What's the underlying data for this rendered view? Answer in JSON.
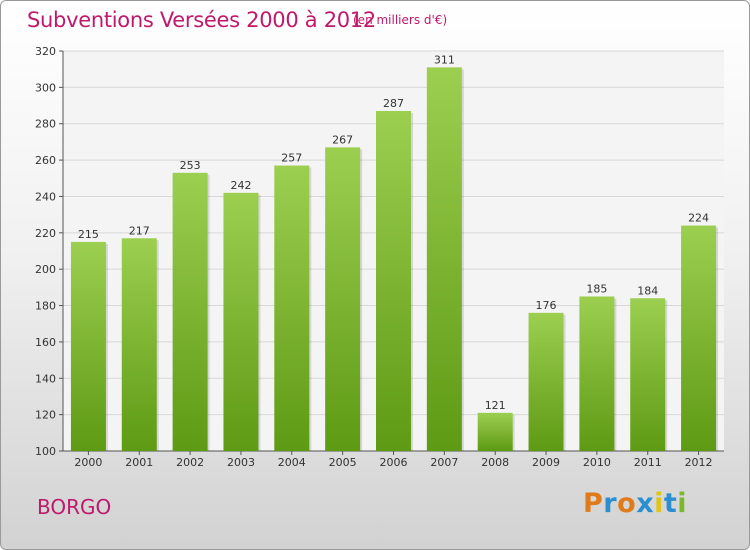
{
  "title": "Subventions Versées 2000 à 2012",
  "subtitle": "(en milliers d'€)",
  "city": "BORGO",
  "logo": {
    "letters": [
      "P",
      "r",
      "o",
      "x",
      "i",
      "t",
      "i"
    ],
    "colors": [
      "#e07b1a",
      "#2a8fd0",
      "#e07b1a",
      "#2a8fd0",
      "#e0c41a",
      "#2a8fd0",
      "#7ab82e"
    ]
  },
  "colors": {
    "accent": "#c0196b",
    "bar_top": "#9ccf50",
    "bar_bottom": "#5e9a14"
  },
  "chart_data": {
    "type": "bar",
    "title": "Subventions Versées 2000 à 2012",
    "xlabel": "",
    "ylabel": "",
    "categories": [
      "2000",
      "2001",
      "2002",
      "2003",
      "2004",
      "2005",
      "2006",
      "2007",
      "2008",
      "2009",
      "2010",
      "2011",
      "2012"
    ],
    "values": [
      215,
      217,
      253,
      242,
      257,
      267,
      287,
      311,
      121,
      176,
      185,
      184,
      224
    ],
    "ylim": [
      100,
      320
    ],
    "yticks": [
      100,
      120,
      140,
      160,
      180,
      200,
      220,
      240,
      260,
      280,
      300,
      320
    ],
    "grid": true,
    "legend": "none"
  }
}
